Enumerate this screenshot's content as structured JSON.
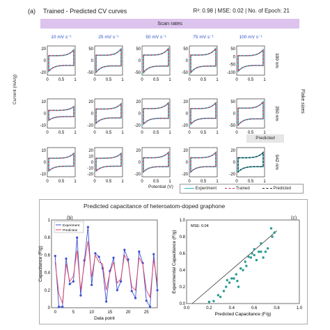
{
  "panel_a": {
    "label": "(a)",
    "title": "Trained - Predicted CV curves",
    "metrics": "R²: 0.98 | MSE: 0.02 | No. of Epoch: 21",
    "scan_rates_label": "Scan rates",
    "flake_sizes_label": "Flake sizes",
    "predicted_tag": "Predicted",
    "ylabel": "Current (mA/g)",
    "xlabel": "Potential (V)",
    "legend": {
      "experiment": "Experiment",
      "trained": "Trained",
      "predicted": "Predicted"
    },
    "colors": {
      "experiment": "#2ab0c0",
      "trained": "#d42c4c",
      "predicted": "#222222"
    }
  },
  "panel_b_title": "Predicted capacitance of heteroatom-doped graphone",
  "panel_b_label": "(b)",
  "panel_c_label": "(c)",
  "chart_data": [
    {
      "type": "line",
      "panel": "a",
      "scan_rates": [
        "10 mV s⁻¹",
        "25 mV s⁻¹",
        "50 mV s⁻¹",
        "75 mV s⁻¹",
        "100 mV s⁻¹"
      ],
      "flake_sizes": [
        "100 nm",
        "350 nm",
        "942 nm"
      ],
      "xlim": [
        0,
        1
      ],
      "xticks": [
        "0",
        "0.5",
        "1"
      ],
      "rows": [
        {
          "yticks": [
            [
              "20",
              "0",
              "-20"
            ],
            [
              "50",
              "0",
              "-50"
            ],
            [
              "50",
              "0",
              "-50"
            ],
            [
              "50",
              "0",
              "-50"
            ],
            [
              "50",
              "0",
              "-50",
              "-100"
            ]
          ],
          "amplitude": [
            0.55,
            0.6,
            0.62,
            0.62,
            0.55
          ]
        },
        {
          "yticks": [
            [
              "10",
              "0",
              "-10"
            ],
            [
              "20",
              "0",
              "-20"
            ],
            [
              "20",
              "0",
              "-20"
            ],
            [
              "20",
              "0",
              "-20"
            ],
            [
              "50",
              "0",
              "-50"
            ]
          ],
          "amplitude": [
            0.35,
            0.5,
            0.55,
            0.55,
            0.6
          ]
        },
        {
          "yticks": [
            [
              "10",
              "0",
              "-10"
            ],
            [
              "20",
              "10",
              "0",
              "-10",
              "-20"
            ],
            [
              "20",
              "0",
              "-20"
            ],
            [
              "20",
              "0",
              "-20"
            ],
            [
              "20",
              "0",
              "-20"
            ]
          ],
          "amplitude": [
            0.45,
            0.45,
            0.5,
            0.5,
            0.5
          ]
        }
      ],
      "predicted_cell": [
        2,
        4
      ]
    },
    {
      "type": "line",
      "panel": "b",
      "xlabel": "Data point",
      "ylabel": "Capacitance (F/g)",
      "xlim": [
        -1,
        28
      ],
      "ylim": [
        0,
        1
      ],
      "xticks": [
        0,
        5,
        10,
        15,
        20,
        25
      ],
      "yticks": [
        0,
        0.2,
        0.4,
        0.6,
        0.8,
        1
      ],
      "series": [
        {
          "name": "Experiment",
          "color": "#3b4fd0",
          "values": [
            0.59,
            0.01,
            0.01,
            0.56,
            0.27,
            0.3,
            0.8,
            0.14,
            0.54,
            0.92,
            0.26,
            0.62,
            0.58,
            0.45,
            0.07,
            0.42,
            0.57,
            0.2,
            0.3,
            0.66,
            0.55,
            0.19,
            0.11,
            0.64,
            0.51,
            0.08,
            0.01,
            0.61,
            0.2
          ]
        },
        {
          "name": "Prediction",
          "color": "#e04060",
          "values": [
            0.52,
            0.16,
            0.05,
            0.5,
            0.3,
            0.36,
            0.65,
            0.2,
            0.5,
            0.76,
            0.35,
            0.6,
            0.52,
            0.5,
            0.2,
            0.4,
            0.52,
            0.28,
            0.33,
            0.6,
            0.52,
            0.24,
            0.2,
            0.57,
            0.5,
            0.2,
            0.12,
            0.55,
            0.28
          ]
        }
      ]
    },
    {
      "type": "scatter",
      "panel": "c",
      "xlabel": "Predicted Capacitance (F/g)",
      "ylabel": "Experimental Capacitance (F/g)",
      "annotation": "MSE: 0.04",
      "xlim": [
        0,
        1
      ],
      "ylim": [
        0,
        1
      ],
      "xticks": [
        0,
        0.2,
        0.4,
        0.6,
        0.8,
        1
      ],
      "yticks": [
        0,
        0.2,
        0.4,
        0.6,
        0.8,
        1
      ],
      "color": "#2a9a90",
      "points": [
        [
          0.2,
          0.02
        ],
        [
          0.24,
          0.03
        ],
        [
          0.28,
          0.1
        ],
        [
          0.3,
          0.08
        ],
        [
          0.33,
          0.15
        ],
        [
          0.35,
          0.2
        ],
        [
          0.36,
          0.28
        ],
        [
          0.38,
          0.25
        ],
        [
          0.4,
          0.3
        ],
        [
          0.42,
          0.3
        ],
        [
          0.44,
          0.35
        ],
        [
          0.45,
          0.27
        ],
        [
          0.48,
          0.42
        ],
        [
          0.5,
          0.4
        ],
        [
          0.52,
          0.5
        ],
        [
          0.53,
          0.45
        ],
        [
          0.55,
          0.56
        ],
        [
          0.57,
          0.55
        ],
        [
          0.58,
          0.6
        ],
        [
          0.6,
          0.58
        ],
        [
          0.6,
          0.65
        ],
        [
          0.62,
          0.52
        ],
        [
          0.64,
          0.62
        ],
        [
          0.66,
          0.72
        ],
        [
          0.68,
          0.55
        ],
        [
          0.7,
          0.62
        ],
        [
          0.72,
          0.66
        ],
        [
          0.75,
          0.9
        ],
        [
          0.76,
          0.8
        ],
        [
          0.78,
          0.85
        ],
        [
          0.66,
          0.62
        ],
        [
          0.46,
          0.2
        ]
      ]
    }
  ]
}
